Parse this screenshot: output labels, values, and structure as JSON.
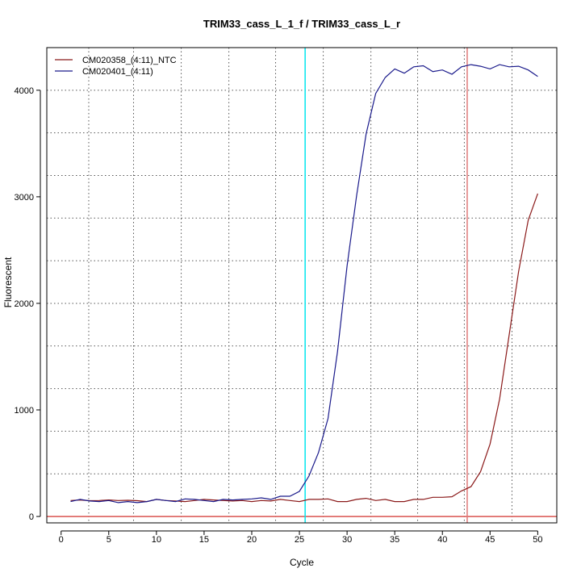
{
  "chart_data": {
    "type": "line",
    "title": "TRIM33_cass_L_1_f / TRIM33_cass_L_r",
    "xlabel": "Cycle",
    "ylabel": "Fluorescent",
    "xlim": [
      -1.5,
      52
    ],
    "ylim": [
      -60,
      4400
    ],
    "x_ticks": [
      0,
      5,
      10,
      15,
      20,
      25,
      30,
      35,
      40,
      45,
      50
    ],
    "y_ticks": [
      0,
      1000,
      2000,
      3000,
      4000
    ],
    "grid": "dotted",
    "grid_x": [
      2.9,
      7.6,
      12.6,
      17.6,
      22.5,
      27.5,
      32.5,
      37.4,
      42.3,
      47.3
    ],
    "grid_y": [
      400,
      800,
      1200,
      1600,
      2000,
      2400,
      2800,
      3200,
      3600,
      4000
    ],
    "legend_position": "top-left",
    "vertical_lines": [
      {
        "x": 25.6,
        "color": "#00e5ee"
      },
      {
        "x": 42.6,
        "color": "#e07a7a"
      }
    ],
    "horizontal_lines": [
      {
        "y": 0,
        "color": "#d9534f"
      }
    ],
    "series": [
      {
        "name": "CM020358_(4:11)_NTC",
        "color": "#8b1a1a",
        "x": [
          1,
          2,
          3,
          4,
          5,
          6,
          7,
          8,
          9,
          10,
          11,
          12,
          13,
          14,
          15,
          16,
          17,
          18,
          19,
          20,
          21,
          22,
          23,
          24,
          25,
          26,
          27,
          28,
          29,
          30,
          31,
          32,
          33,
          34,
          35,
          36,
          37,
          38,
          39,
          40,
          41,
          42,
          43,
          44,
          45,
          46,
          47,
          48,
          49,
          50
        ],
        "values": [
          150,
          155,
          148,
          150,
          155,
          150,
          152,
          148,
          140,
          160,
          150,
          145,
          140,
          150,
          160,
          155,
          150,
          145,
          150,
          140,
          150,
          145,
          160,
          150,
          140,
          160,
          160,
          165,
          140,
          140,
          160,
          170,
          150,
          160,
          140,
          140,
          160,
          160,
          180,
          180,
          185,
          240,
          280,
          420,
          680,
          1100,
          1700,
          2300,
          2780,
          3030
        ]
      },
      {
        "name": "CM020401_(4:11)",
        "color": "#1a1a8b",
        "x": [
          1,
          2,
          3,
          4,
          5,
          6,
          7,
          8,
          9,
          10,
          11,
          12,
          13,
          14,
          15,
          16,
          17,
          18,
          19,
          20,
          21,
          22,
          23,
          24,
          25,
          26,
          27,
          28,
          29,
          30,
          31,
          32,
          33,
          34,
          35,
          36,
          37,
          38,
          39,
          40,
          41,
          42,
          43,
          44,
          45,
          46,
          47,
          48,
          49,
          50
        ],
        "values": [
          140,
          160,
          145,
          140,
          150,
          130,
          140,
          130,
          140,
          160,
          150,
          140,
          165,
          160,
          150,
          140,
          160,
          155,
          160,
          165,
          175,
          160,
          190,
          190,
          235,
          380,
          600,
          920,
          1550,
          2350,
          3010,
          3590,
          3970,
          4120,
          4200,
          4160,
          4220,
          4230,
          4175,
          4190,
          4150,
          4220,
          4240,
          4225,
          4200,
          4240,
          4220,
          4225,
          4190,
          4130
        ]
      }
    ]
  }
}
